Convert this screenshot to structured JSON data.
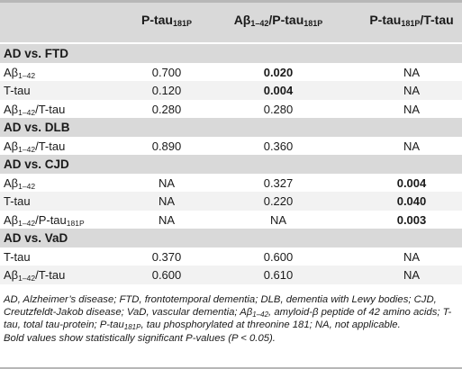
{
  "header": {
    "col1_main": "P-tau",
    "col1_sub": "181P",
    "col2_a": "Aβ",
    "col2_a_sub": "1–42",
    "col2_b": "/P-tau",
    "col2_b_sub": "181P",
    "col3_main": "P-tau",
    "col3_sub": "181P",
    "col3_tail": "/T-tau"
  },
  "groups": [
    {
      "title": "AD vs. FTD"
    },
    {
      "title": "AD vs. DLB"
    },
    {
      "title": "AD vs. CJD"
    },
    {
      "title": "AD vs. VaD"
    }
  ],
  "rows": [
    {
      "label": "Aβ",
      "label_sub": "1–42",
      "label_tail": "",
      "label_sub2": "",
      "v1": "0.700",
      "v2": "0.020",
      "v3": "NA"
    },
    {
      "label": "T-tau",
      "label_sub": "",
      "label_tail": "",
      "label_sub2": "",
      "v1": "0.120",
      "v2": "0.004",
      "v3": "NA"
    },
    {
      "label": "Aβ",
      "label_sub": "1–42",
      "label_tail": "/T-tau",
      "label_sub2": "",
      "v1": "0.280",
      "v2": "0.280",
      "v3": "NA"
    },
    {
      "label": "Aβ",
      "label_sub": "1–42",
      "label_tail": "/T-tau",
      "label_sub2": "",
      "v1": "0.890",
      "v2": "0.360",
      "v3": "NA"
    },
    {
      "label": "Aβ",
      "label_sub": "1–42",
      "label_tail": "",
      "label_sub2": "",
      "v1": "NA",
      "v2": "0.327",
      "v3": "0.004"
    },
    {
      "label": "T-tau",
      "label_sub": "",
      "label_tail": "",
      "label_sub2": "",
      "v1": "NA",
      "v2": "0.220",
      "v3": "0.040"
    },
    {
      "label": "Aβ",
      "label_sub": "1–42",
      "label_tail": "/P-tau",
      "label_sub2": "181P",
      "v1": "NA",
      "v2": "NA",
      "v3": "0.003"
    },
    {
      "label": "T-tau",
      "label_sub": "",
      "label_tail": "",
      "label_sub2": "",
      "v1": "0.370",
      "v2": "0.600",
      "v3": "NA"
    },
    {
      "label": "Aβ",
      "label_sub": "1–42",
      "label_tail": "/T-tau",
      "label_sub2": "",
      "v1": "0.600",
      "v2": "0.610",
      "v3": "NA"
    }
  ],
  "footnote": {
    "p1": "AD, Alzheimer’s disease; FTD, frontotemporal dementia; DLB, dementia with Lewy bodies; CJD, Creutzfeldt-Jakob disease; VaD, vascular dementia; Aβ",
    "p1_sub": "1–42",
    "p2": ", amyloid-β peptide of 42 amino acids; T-tau, total tau-protein; P-tau",
    "p2_sub": "181P",
    "p3": ", tau phosphorylated at threonine 181; NA, not applicable.",
    "line2": "Bold values show statistically significant P-values (P < 0.05)."
  }
}
